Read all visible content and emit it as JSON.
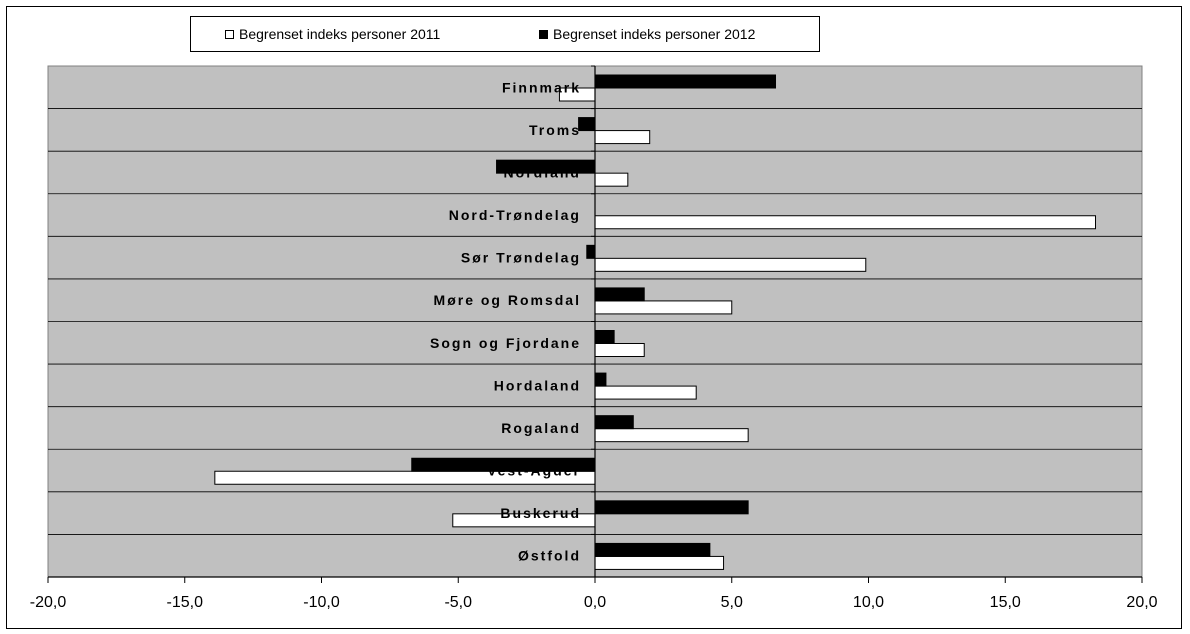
{
  "chart_data": {
    "type": "bar",
    "orientation": "horizontal",
    "categories": [
      "Finnmark",
      "Troms",
      "Nordland",
      "Nord-Trøndelag",
      "Sør Trøndelag",
      "Møre og Romsdal",
      "Sogn og Fjordane",
      "Hordaland",
      "Rogaland",
      "Vest-Agder",
      "Buskerud",
      "Østfold"
    ],
    "series": [
      {
        "name": "Begrenset indeks personer 2011",
        "color": "#ffffff",
        "values": [
          -1.3,
          2.0,
          1.2,
          18.3,
          9.9,
          5.0,
          1.8,
          3.7,
          5.6,
          -13.9,
          -5.2,
          4.7
        ]
      },
      {
        "name": "Begrenset indeks personer 2012",
        "color": "#000000",
        "values": [
          6.6,
          -0.6,
          -3.6,
          0.0,
          -0.3,
          1.8,
          0.7,
          0.4,
          1.4,
          -6.7,
          5.6,
          4.2
        ]
      }
    ],
    "xlim": [
      -20,
      20
    ],
    "x_ticks": [
      "-20,0",
      "-15,0",
      "-10,0",
      "-5,0",
      "0,0",
      "5,0",
      "10,0",
      "15,0",
      "20,0"
    ],
    "x_tick_values": [
      -20,
      -15,
      -10,
      -5,
      0,
      5,
      10,
      15,
      20
    ],
    "legend_position": "top",
    "plot_background": "#c0c0c0",
    "grid": "horizontal"
  }
}
